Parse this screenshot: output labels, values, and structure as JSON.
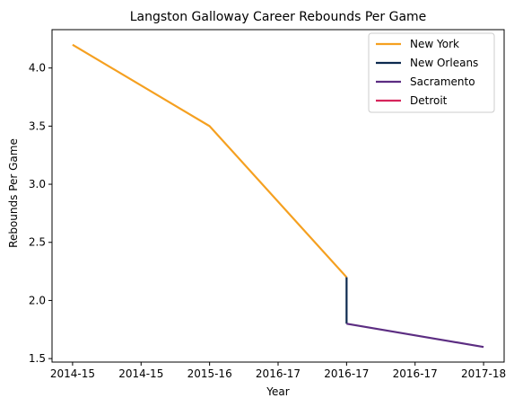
{
  "chart_data": {
    "type": "line",
    "title": "Langston Galloway Career Rebounds Per Game",
    "xlabel": "Year",
    "ylabel": "Rebounds Per Game",
    "x_tick_labels": [
      "2014-15",
      "2014-15",
      "2015-16",
      "2016-17",
      "2016-17",
      "2016-17",
      "2017-18"
    ],
    "y_ticks": [
      1.5,
      2.0,
      2.5,
      3.0,
      3.5,
      4.0
    ],
    "y_tick_labels": [
      "1.5",
      "2.0",
      "2.5",
      "3.0",
      "3.5",
      "4.0"
    ],
    "ylim": [
      1.47,
      4.33
    ],
    "grid": false,
    "legend_position": "top-right",
    "series": [
      {
        "name": "New York",
        "color": "#f5a020",
        "points": [
          {
            "x": 0,
            "y": 4.2
          },
          {
            "x": 2,
            "y": 3.5
          },
          {
            "x": 4,
            "y": 2.2
          }
        ]
      },
      {
        "name": "New Orleans",
        "color": "#0d2a4f",
        "points": [
          {
            "x": 4,
            "y": 2.2
          },
          {
            "x": 4,
            "y": 1.8
          }
        ]
      },
      {
        "name": "Sacramento",
        "color": "#5c2d82",
        "points": [
          {
            "x": 4,
            "y": 1.8
          },
          {
            "x": 6,
            "y": 1.6
          }
        ]
      },
      {
        "name": "Detroit",
        "color": "#d6255c",
        "points": []
      }
    ]
  }
}
